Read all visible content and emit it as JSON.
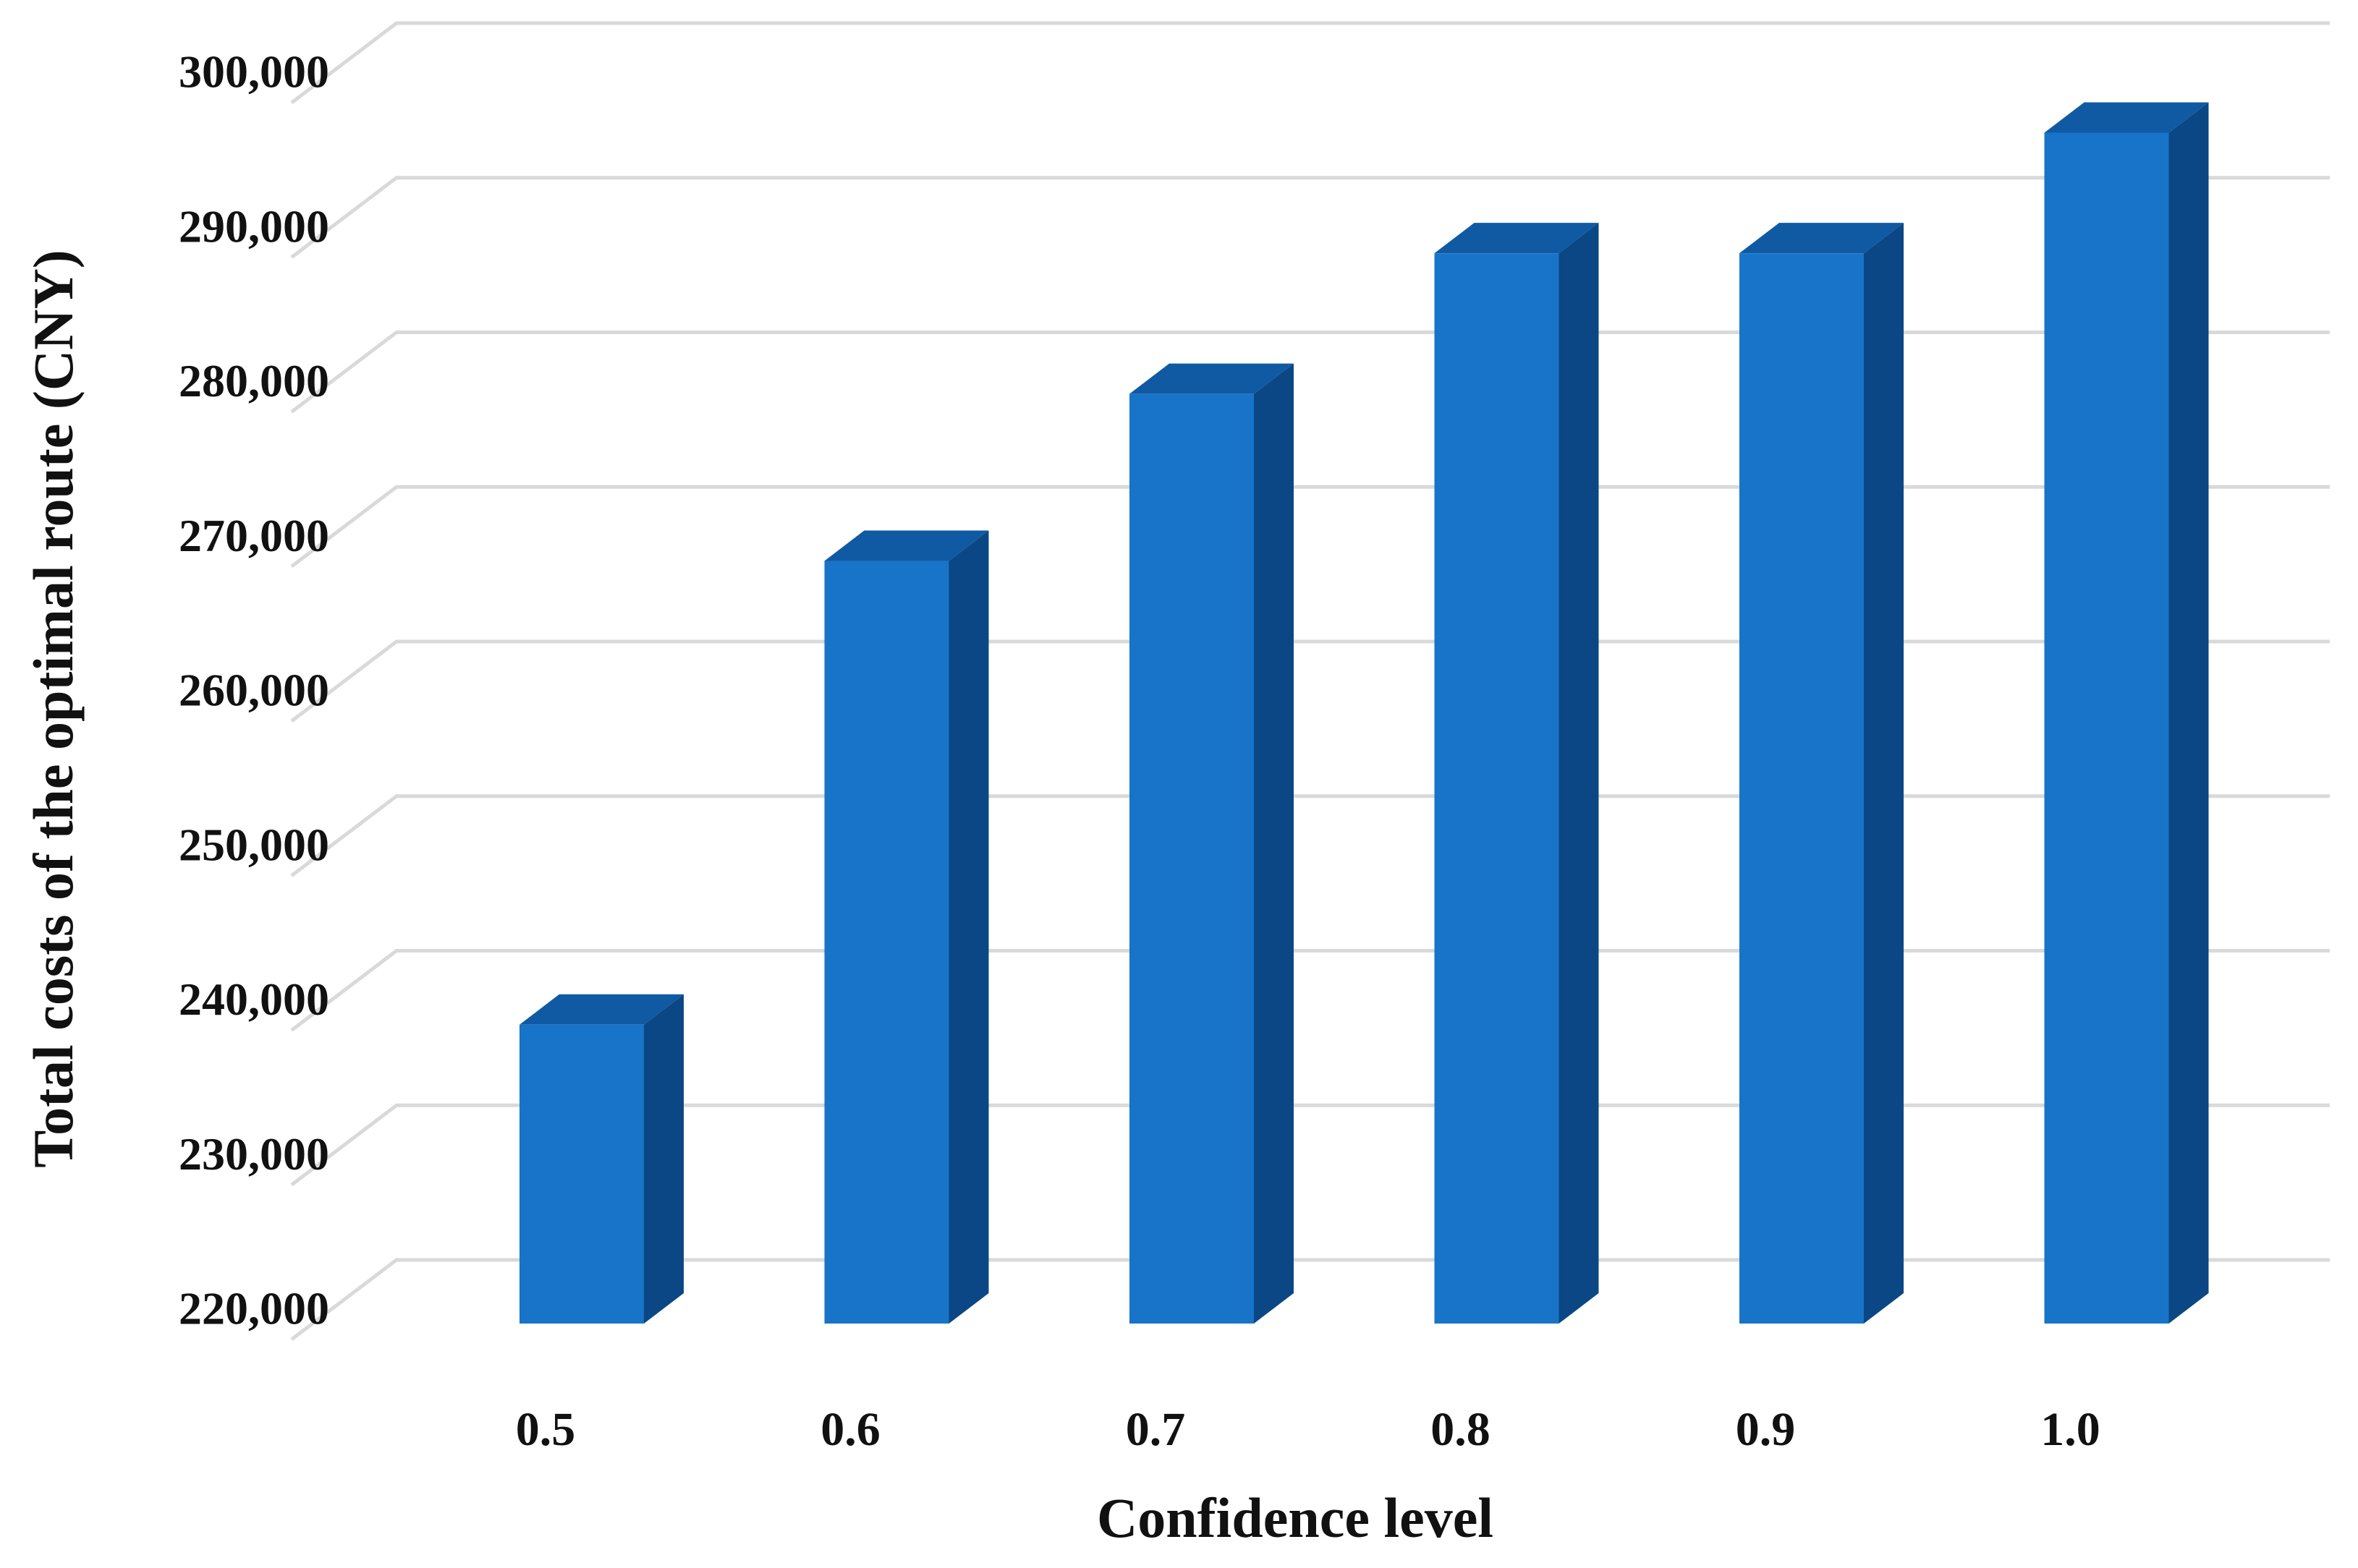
{
  "chart_data": {
    "type": "bar",
    "style": "3d-column",
    "categories": [
      "0.5",
      "0.6",
      "0.7",
      "0.8",
      "0.9",
      "1.0"
    ],
    "values": [
      239800,
      269800,
      280600,
      289700,
      289700,
      297500
    ],
    "xlabel": "Confidence  level",
    "ylabel": "Total costs of the optimal route (CNY)",
    "ylim": [
      220000,
      300000
    ],
    "yticks": [
      {
        "value": 220000,
        "label": "220,000"
      },
      {
        "value": 230000,
        "label": "230,000"
      },
      {
        "value": 240000,
        "label": "240,000"
      },
      {
        "value": 250000,
        "label": "250,000"
      },
      {
        "value": 260000,
        "label": "260,000"
      },
      {
        "value": 270000,
        "label": "270,000"
      },
      {
        "value": 280000,
        "label": "280,000"
      },
      {
        "value": 290000,
        "label": "290,000"
      },
      {
        "value": 300000,
        "label": "300,000"
      }
    ],
    "grid": true,
    "legend": "none",
    "colors": {
      "front": "#1874C8",
      "side": "#0A4784",
      "top": "#105AA3",
      "grid": "#D9D9D9"
    }
  }
}
